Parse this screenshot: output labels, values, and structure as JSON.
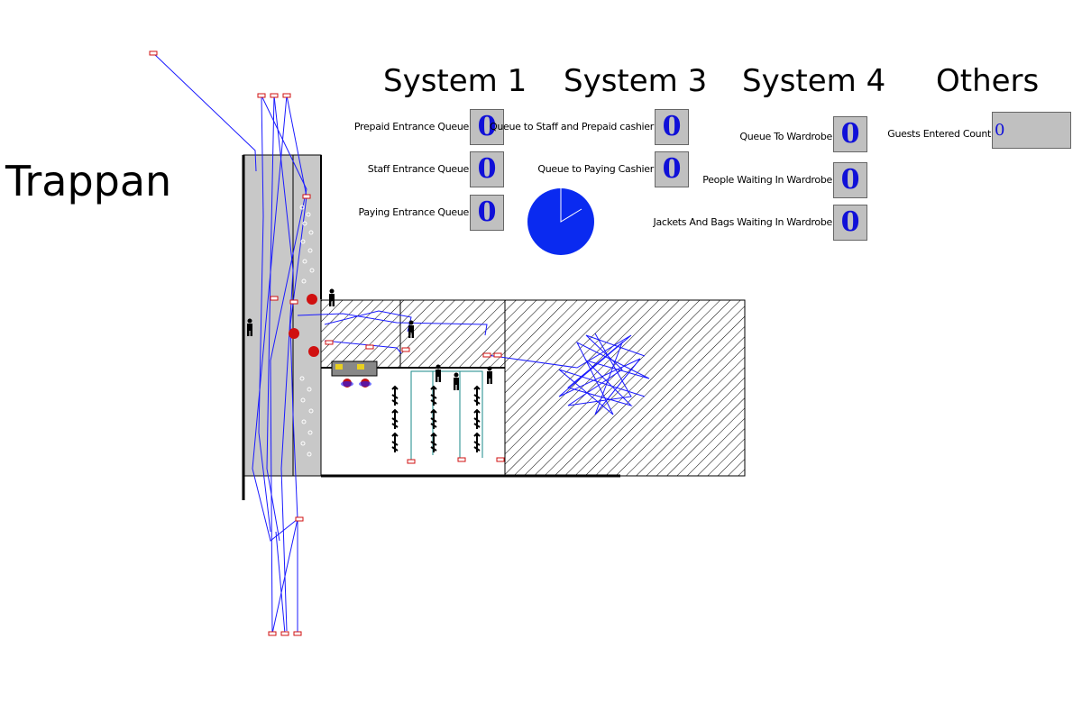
{
  "title": "Trappan",
  "systems": {
    "system1": {
      "heading": "System 1",
      "rows": [
        {
          "label": "Prepaid Entrance Queue",
          "value": "0"
        },
        {
          "label": "Staff Entrance Queue",
          "value": "0"
        },
        {
          "label": "Paying Entrance Queue",
          "value": "0"
        }
      ]
    },
    "system3": {
      "heading": "System 3",
      "rows": [
        {
          "label": "Queue to Staff and Prepaid cashier",
          "value": "0"
        },
        {
          "label": "Queue to Paying Cashier",
          "value": "0"
        }
      ]
    },
    "system4": {
      "heading": "System 4",
      "rows": [
        {
          "label": "Queue To Wardrobe",
          "value": "0"
        },
        {
          "label": "People Waiting In Wardrobe",
          "value": "0"
        },
        {
          "label": "Jackets And Bags Waiting In Wardrobe",
          "value": "0"
        }
      ]
    },
    "others": {
      "heading": "Others",
      "rows": [
        {
          "label": "Guests Entered Count",
          "value": "0"
        }
      ]
    }
  },
  "colors": {
    "path_line": "#1a1aff",
    "pie_fill": "#0a2af0",
    "counter_bg": "#c0c0c0",
    "counter_value": "#1010d8",
    "corridor_fill": "#c8c8c8",
    "node_marker": "#d01010"
  },
  "icons": {
    "person": "person-icon",
    "cashier": "cashier-icon",
    "coat_rack": "coat-rack-icon",
    "pie": "utilization-pie"
  }
}
